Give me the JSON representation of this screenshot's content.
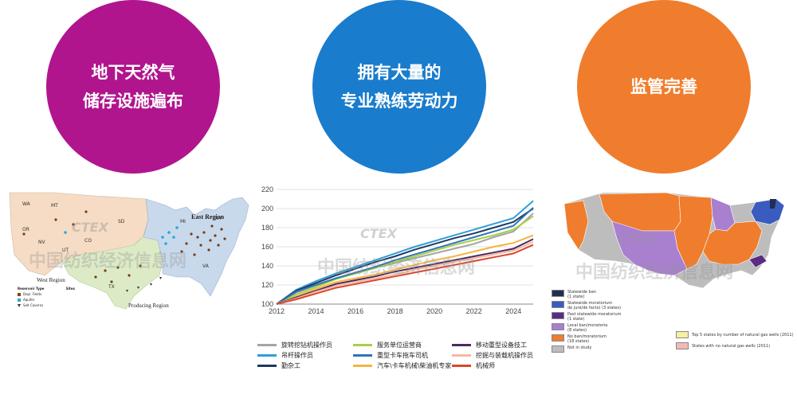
{
  "circles": [
    {
      "lines": [
        "地下天然气",
        "储存设施遍布"
      ],
      "color": "#b0158e"
    },
    {
      "lines": [
        "拥有大量的",
        "专业熟练劳动力"
      ],
      "color": "#1a7ccc"
    },
    {
      "lines": [
        "监管完善"
      ],
      "color": "#ef7d2d"
    }
  ],
  "map1": {
    "east_region": "East Region",
    "west_region": "West Region",
    "producing_region": "Producing Region",
    "legend": {
      "header_type": "Reservoir Type",
      "header_sites": "Sites",
      "items": [
        {
          "label": "Depl. Fields",
          "value": "",
          "color": "#8b4513"
        },
        {
          "label": "Aquifer",
          "value": "",
          "color": "#2aa7d9"
        },
        {
          "label": "Salt Caverns",
          "value": "",
          "color": "#333333"
        }
      ]
    }
  },
  "chart_data": {
    "type": "line",
    "x": [
      2012,
      2013,
      2014,
      2015,
      2016,
      2017,
      2018,
      2019,
      2020,
      2021,
      2022,
      2023,
      2024,
      2025
    ],
    "xticks": [
      2012,
      2014,
      2016,
      2018,
      2020,
      2022,
      2024
    ],
    "ylim": [
      100,
      220
    ],
    "yticks": [
      100,
      120,
      140,
      160,
      180,
      200,
      220
    ],
    "grid": true,
    "series": [
      {
        "name": "旋转挖钻机操作员",
        "color": "#a5a5a5",
        "values": [
          100,
          112,
          120,
          127,
          132,
          138,
          143,
          148,
          153,
          158,
          163,
          170,
          176,
          195
        ]
      },
      {
        "name": "吊杆操作员",
        "color": "#2f9ed8",
        "values": [
          100,
          115,
          124,
          132,
          139,
          146,
          153,
          160,
          166,
          172,
          178,
          184,
          190,
          208
        ]
      },
      {
        "name": "勤杂工",
        "color": "#1f3864",
        "values": [
          100,
          114,
          122,
          130,
          137,
          144,
          150,
          157,
          163,
          169,
          174,
          180,
          186,
          200
        ]
      },
      {
        "name": "服务单位运营商",
        "color": "#a9cf46",
        "values": [
          100,
          110,
          118,
          126,
          132,
          138,
          144,
          150,
          156,
          162,
          167,
          172,
          178,
          192
        ]
      },
      {
        "name": "重型卡车拖车司机",
        "color": "#2e75b6",
        "values": [
          100,
          113,
          120,
          127,
          133,
          139,
          146,
          152,
          158,
          164,
          170,
          176,
          182,
          201
        ]
      },
      {
        "name": "汽车\\卡车机械\\柴油机专家",
        "color": "#f4b540",
        "values": [
          100,
          108,
          116,
          123,
          127,
          131,
          136,
          141,
          146,
          150,
          155,
          160,
          164,
          172
        ]
      },
      {
        "name": "移动重型设备技工",
        "color": "#4b2a5c",
        "values": [
          100,
          107,
          114,
          121,
          125,
          129,
          134,
          138,
          142,
          146,
          150,
          154,
          158,
          168
        ]
      },
      {
        "name": "挖掘与装载机操作员",
        "color": "#f5b7a5",
        "values": [
          100,
          106,
          113,
          119,
          123,
          127,
          131,
          136,
          140,
          144,
          148,
          152,
          156,
          165
        ]
      },
      {
        "name": "机械师",
        "color": "#d9472b",
        "values": [
          100,
          105,
          111,
          117,
          121,
          125,
          129,
          133,
          137,
          141,
          145,
          149,
          153,
          162
        ]
      }
    ]
  },
  "map3": {
    "legend": [
      {
        "label": "Statewide ban\n(1 state)",
        "color": "#1f2f4f"
      },
      {
        "label": "Statewide moratorium\nde jure/de facto) (3 states)",
        "color": "#3a5bbf"
      },
      {
        "label": "Past statewide moratorium\n(1 state)",
        "color": "#5b2c83"
      },
      {
        "label": "Local ban/moratoria\n(8 states)",
        "color": "#a97fd0"
      },
      {
        "label": "No ban/moratorium\n(18 states)",
        "color": "#ef7d2d"
      },
      {
        "label": "Not in study",
        "color": "#bdbdbd"
      }
    ],
    "legend2": [
      {
        "label": "Top 5 states by number of natural gas wells (2011)",
        "color": "#f3f0a0"
      },
      {
        "label": "States with no natural gas wells (2011)",
        "color": "#f3b8b8"
      }
    ]
  },
  "watermark": {
    "logo": "CTEX",
    "text": "中国纺织经济信息网"
  }
}
